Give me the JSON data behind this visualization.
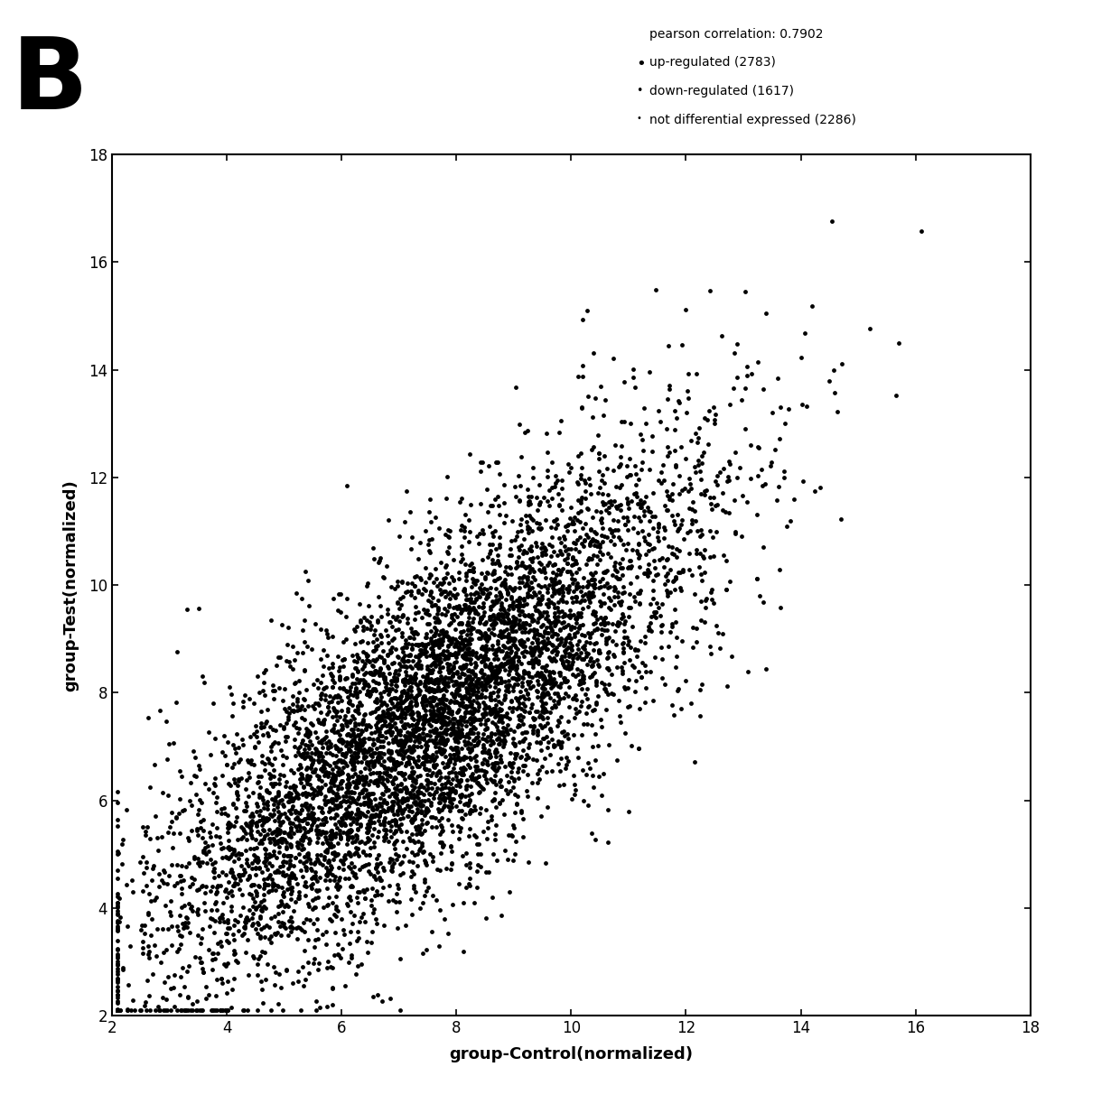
{
  "title_letter": "B",
  "xlabel": "group-Control(normalized)",
  "ylabel": "group-Test(normalized)",
  "xlim": [
    2,
    18
  ],
  "ylim": [
    2,
    18
  ],
  "xticks": [
    2,
    4,
    6,
    8,
    10,
    12,
    14,
    16,
    18
  ],
  "yticks": [
    2,
    4,
    6,
    8,
    10,
    12,
    14,
    16,
    18
  ],
  "pearson": "pearson correlation: 0.7902",
  "legend_entries": [
    {
      "label": "up-regulated (2783)"
    },
    {
      "label": "down-regulated (1617)"
    },
    {
      "label": "not differential expressed (2286)"
    }
  ],
  "point_color": "#000000",
  "background_color": "#ffffff",
  "n_total": 6686,
  "seed": 42,
  "figsize": [
    12.4,
    12.23
  ],
  "dpi": 100,
  "title_fontsize": 80,
  "axis_label_fontsize": 13,
  "tick_fontsize": 12,
  "legend_fontsize": 10,
  "point_size": 12
}
